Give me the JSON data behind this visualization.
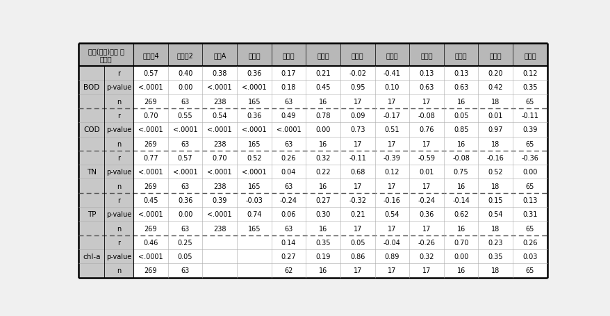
{
  "col_headers": [
    "본류(나주)와의 상\n관계수",
    "지석천4",
    "지석천2",
    "지석A",
    "대촌천",
    "화순천",
    "장치저",
    "우치저",
    "도암저",
    "이만저",
    "금전저",
    "서성저",
    "나주호"
  ],
  "row_groups": [
    {
      "label": "BOD",
      "rows": [
        {
          "stat": "r",
          "values": [
            "0.57",
            "0.40",
            "0.38",
            "0.36",
            "0.17",
            "0.21",
            "-0.02",
            "-0.41",
            "0.13",
            "0.13",
            "0.20",
            "0.12"
          ]
        },
        {
          "stat": "p-value",
          "values": [
            "<.0001",
            "0.00",
            "<.0001",
            "<.0001",
            "0.18",
            "0.45",
            "0.95",
            "0.10",
            "0.63",
            "0.63",
            "0.42",
            "0.35"
          ]
        },
        {
          "stat": "n",
          "values": [
            "269",
            "63",
            "238",
            "165",
            "63",
            "16",
            "17",
            "17",
            "17",
            "16",
            "18",
            "65"
          ]
        }
      ]
    },
    {
      "label": "COD",
      "rows": [
        {
          "stat": "r",
          "values": [
            "0.70",
            "0.55",
            "0.54",
            "0.36",
            "0.49",
            "0.78",
            "0.09",
            "-0.17",
            "-0.08",
            "0.05",
            "0.01",
            "-0.11"
          ]
        },
        {
          "stat": "p-value",
          "values": [
            "<.0001",
            "<.0001",
            "<.0001",
            "<.0001",
            "<.0001",
            "0.00",
            "0.73",
            "0.51",
            "0.76",
            "0.85",
            "0.97",
            "0.39"
          ]
        },
        {
          "stat": "n",
          "values": [
            "269",
            "63",
            "238",
            "165",
            "63",
            "16",
            "17",
            "17",
            "17",
            "16",
            "18",
            "65"
          ]
        }
      ]
    },
    {
      "label": "TN",
      "rows": [
        {
          "stat": "r",
          "values": [
            "0.77",
            "0.57",
            "0.70",
            "0.52",
            "0.26",
            "0.32",
            "-0.11",
            "-0.39",
            "-0.59",
            "-0.08",
            "-0.16",
            "-0.36"
          ]
        },
        {
          "stat": "p-value",
          "values": [
            "<.0001",
            "<.0001",
            "<.0001",
            "<.0001",
            "0.04",
            "0.22",
            "0.68",
            "0.12",
            "0.01",
            "0.75",
            "0.52",
            "0.00"
          ]
        },
        {
          "stat": "n",
          "values": [
            "269",
            "63",
            "238",
            "165",
            "63",
            "16",
            "17",
            "17",
            "17",
            "16",
            "18",
            "65"
          ]
        }
      ]
    },
    {
      "label": "TP",
      "rows": [
        {
          "stat": "r",
          "values": [
            "0.45",
            "0.36",
            "0.39",
            "-0.03",
            "-0.24",
            "0.27",
            "-0.32",
            "-0.16",
            "-0.24",
            "-0.14",
            "0.15",
            "0.13"
          ]
        },
        {
          "stat": "p-value",
          "values": [
            "<.0001",
            "0.00",
            "<.0001",
            "0.74",
            "0.06",
            "0.30",
            "0.21",
            "0.54",
            "0.36",
            "0.62",
            "0.54",
            "0.31"
          ]
        },
        {
          "stat": "n",
          "values": [
            "269",
            "63",
            "238",
            "165",
            "63",
            "16",
            "17",
            "17",
            "17",
            "16",
            "18",
            "65"
          ]
        }
      ]
    },
    {
      "label": "chl-a",
      "rows": [
        {
          "stat": "r",
          "values": [
            "0.46",
            "0.25",
            "",
            "",
            "0.14",
            "0.35",
            "0.05",
            "-0.04",
            "-0.26",
            "0.70",
            "0.23",
            "0.26"
          ]
        },
        {
          "stat": "p-value",
          "values": [
            "<.0001",
            "0.05",
            "",
            "",
            "0.27",
            "0.19",
            "0.86",
            "0.89",
            "0.32",
            "0.00",
            "0.35",
            "0.03"
          ]
        },
        {
          "stat": "n",
          "values": [
            "269",
            "63",
            "",
            "",
            "62",
            "16",
            "17",
            "17",
            "17",
            "16",
            "18",
            "65"
          ]
        }
      ]
    }
  ],
  "bg_color": "#f0f0f0",
  "header_bg": "#b8b8b8",
  "left_col_bg": "#c8c8c8",
  "data_bg": "#ffffff",
  "font_size": 7.0,
  "header_font_size": 7.0,
  "outer_lw": 1.8,
  "header_sep_lw": 1.5,
  "group_sep_lw": 1.0,
  "inner_lw": 0.4,
  "vert_sep_lw": 0.5
}
